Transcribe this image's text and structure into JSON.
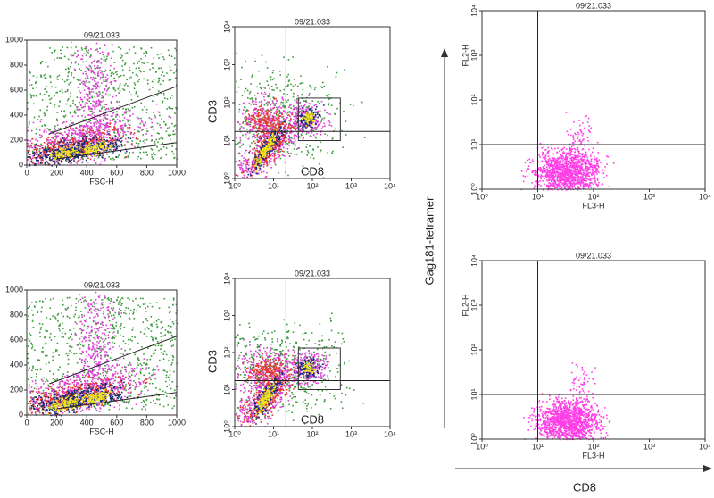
{
  "chart_data": [
    {
      "type": "scatter",
      "title": "09/21.033",
      "xlabel": "FSC-H",
      "xlim": [
        0,
        1000
      ],
      "ylim": [
        0,
        1000
      ],
      "xticks": [
        0,
        200,
        400,
        600,
        800,
        1000
      ],
      "yticks": [
        0,
        200,
        400,
        600,
        800,
        1000
      ]
    },
    {
      "type": "scatter",
      "title": "09/21.033",
      "xlabel": "CD8",
      "ylabel": "CD3",
      "log_x": true,
      "log_y": true,
      "xlim": [
        1,
        10000
      ],
      "ylim": [
        1,
        10000
      ],
      "xticks": [
        {
          "value": 1,
          "label": "10⁰"
        },
        {
          "value": 10,
          "label": "10¹"
        },
        {
          "value": 100,
          "label": "10²"
        },
        {
          "value": 1000,
          "label": "10³"
        },
        {
          "value": 10000,
          "label": "10⁴"
        }
      ],
      "yticks": [
        {
          "value": 1,
          "label": "10⁰"
        },
        {
          "value": 10,
          "label": "10¹"
        },
        {
          "value": 100,
          "label": "10²"
        },
        {
          "value": 1000,
          "label": "10³"
        },
        {
          "value": 10000,
          "label": "10⁴"
        }
      ]
    },
    {
      "type": "scatter",
      "title": "09/21.033",
      "xlabel": "FL3-H",
      "ylabel": "FL2-H",
      "log_x": true,
      "log_y": true,
      "xlim": [
        1,
        10000
      ],
      "ylim": [
        1,
        10000
      ],
      "xticks": [
        {
          "value": 1,
          "label": "10⁰"
        },
        {
          "value": 10,
          "label": "10¹"
        },
        {
          "value": 100,
          "label": "10²"
        },
        {
          "value": 1000,
          "label": "10³"
        },
        {
          "value": 10000,
          "label": "10⁴"
        }
      ],
      "yticks": [
        {
          "value": 1,
          "label": "10⁰"
        },
        {
          "value": 10,
          "label": "10¹"
        },
        {
          "value": 100,
          "label": "10²"
        },
        {
          "value": 1000,
          "label": "10³"
        },
        {
          "value": 10000,
          "label": "10⁴"
        }
      ]
    },
    {
      "type": "scatter",
      "title": "09/21.033",
      "xlabel": "FSC-H",
      "xlim": [
        0,
        1000
      ],
      "ylim": [
        0,
        1000
      ],
      "xticks": [
        0,
        200,
        400,
        600,
        800,
        1000
      ],
      "yticks": [
        0,
        200,
        400,
        600,
        800,
        1000
      ]
    },
    {
      "type": "scatter",
      "title": "09/21.033",
      "xlabel": "CD8",
      "ylabel": "CD3",
      "log_x": true,
      "log_y": true,
      "xlim": [
        1,
        10000
      ],
      "ylim": [
        1,
        10000
      ],
      "xticks": [
        {
          "value": 1,
          "label": "10⁰"
        },
        {
          "value": 10,
          "label": "10¹"
        },
        {
          "value": 100,
          "label": "10²"
        },
        {
          "value": 1000,
          "label": "10³"
        },
        {
          "value": 10000,
          "label": "10⁴"
        }
      ],
      "yticks": [
        {
          "value": 1,
          "label": "10⁰"
        },
        {
          "value": 10,
          "label": "10¹"
        },
        {
          "value": 100,
          "label": "10²"
        },
        {
          "value": 1000,
          "label": "10³"
        },
        {
          "value": 10000,
          "label": "10⁴"
        }
      ]
    },
    {
      "type": "scatter",
      "title": "09/21.033",
      "xlabel": "FL3-H",
      "ylabel": "FL2-H",
      "log_x": true,
      "log_y": true,
      "xlim": [
        1,
        10000
      ],
      "ylim": [
        1,
        10000
      ],
      "xticks": [
        {
          "value": 1,
          "label": "10⁰"
        },
        {
          "value": 10,
          "label": "10¹"
        },
        {
          "value": 100,
          "label": "10²"
        },
        {
          "value": 1000,
          "label": "10³"
        },
        {
          "value": 10000,
          "label": "10⁴"
        }
      ],
      "yticks": [
        {
          "value": 1,
          "label": "10⁰"
        },
        {
          "value": 10,
          "label": "10¹"
        },
        {
          "value": 100,
          "label": "10²"
        },
        {
          "value": 1000,
          "label": "10³"
        },
        {
          "value": 10000,
          "label": "10⁴"
        }
      ]
    }
  ],
  "figure_labels": {
    "ylabel": "Gag181-tetramer",
    "xlabel": "CD8"
  }
}
